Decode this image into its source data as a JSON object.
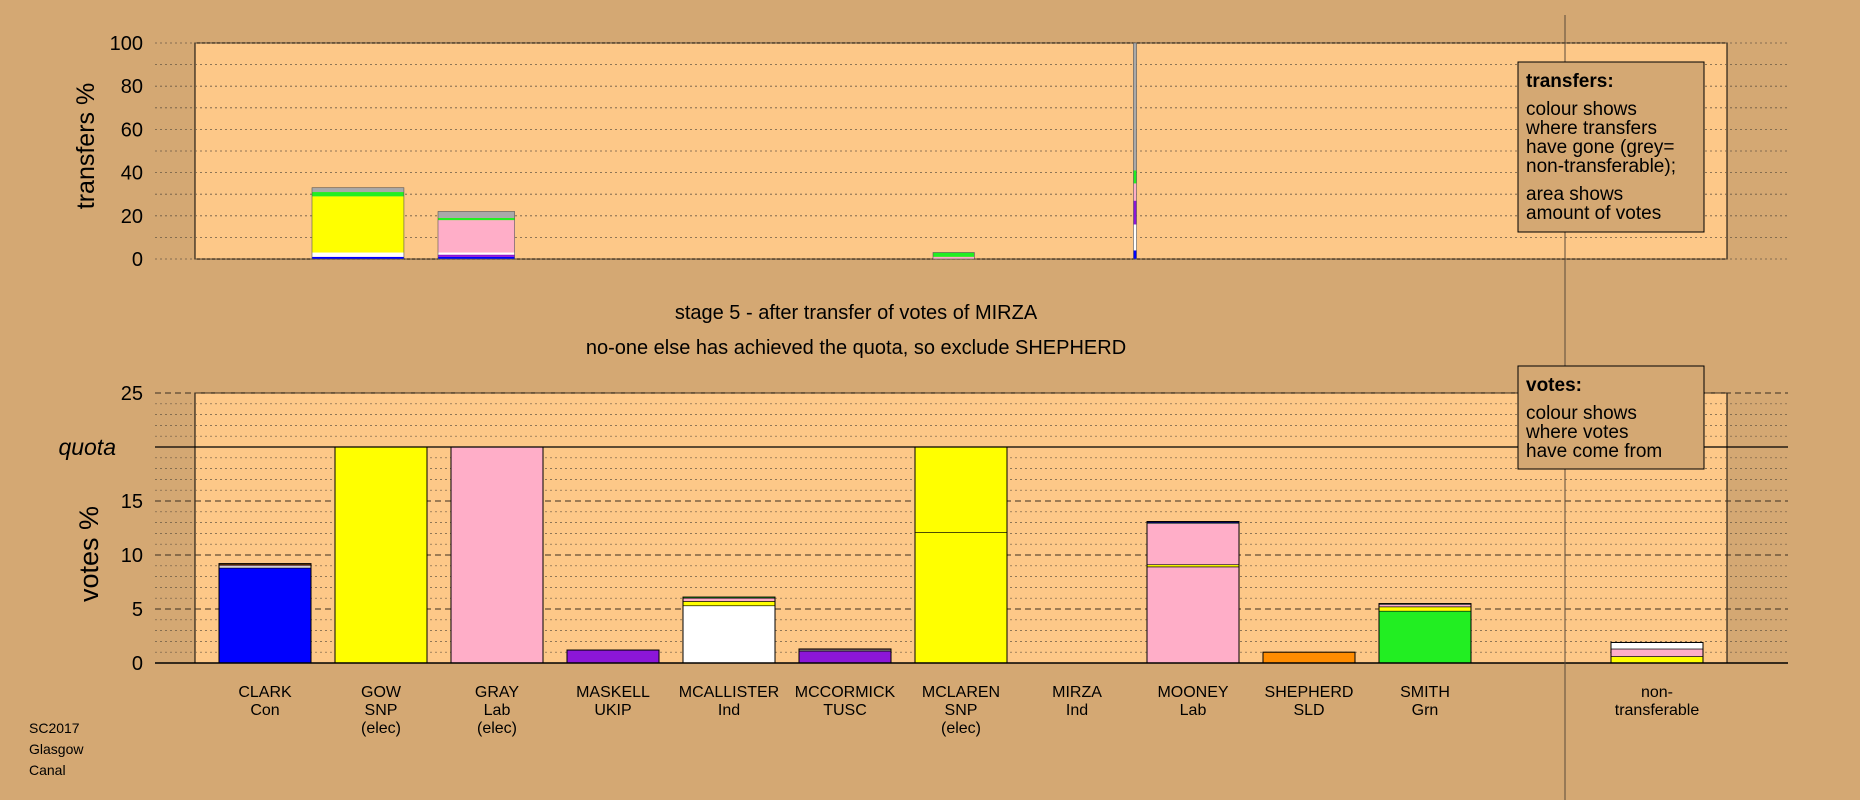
{
  "source_note": [
    "SC2017",
    "Glasgow",
    "Canal"
  ],
  "colors": {
    "background": "#d4a873",
    "panel": "#fdc888",
    "legend_box": "#d4a873",
    "con": "#0000ff",
    "snp": "#ffff00",
    "lab": "#ffaec8",
    "ukip": "#8c16d8",
    "ind": "#ffffff",
    "tusc": "#8c16d8",
    "sld": "#ff8c00",
    "grn": "#22ee22",
    "nontransferable": "#a9a9a9"
  },
  "candidates": [
    {
      "name": "CLARK",
      "party": "Con",
      "elec": ""
    },
    {
      "name": "GOW",
      "party": "SNP",
      "elec": "(elec)"
    },
    {
      "name": "GRAY",
      "party": "Lab",
      "elec": "(elec)"
    },
    {
      "name": "MASKELL",
      "party": "UKIP",
      "elec": ""
    },
    {
      "name": "MCALLISTER",
      "party": "Ind",
      "elec": ""
    },
    {
      "name": "MCCORMICK",
      "party": "TUSC",
      "elec": ""
    },
    {
      "name": "MCLAREN",
      "party": "SNP",
      "elec": "(elec)"
    },
    {
      "name": "MIRZA",
      "party": "Ind",
      "elec": ""
    },
    {
      "name": "MOONEY",
      "party": "Lab",
      "elec": ""
    },
    {
      "name": "SHEPHERD",
      "party": "SLD",
      "elec": ""
    },
    {
      "name": "SMITH",
      "party": "Grn",
      "elec": ""
    }
  ],
  "nontransferable_label": [
    "non-",
    "transferable"
  ],
  "stage_title": "stage 5 - after transfer of votes of MIRZA",
  "stage_subtitle": "no-one else has achieved the quota, so exclude SHEPHERD",
  "legend_transfers": {
    "title": "transfers:",
    "lines": [
      "colour shows",
      "where transfers",
      "have gone (grey=",
      "non-transferable);"
    ],
    "lines2": [
      "area shows",
      "amount of votes"
    ]
  },
  "legend_votes": {
    "title": "votes:",
    "lines": [
      "colour shows",
      "where votes",
      "have come from"
    ]
  },
  "chart_data": [
    {
      "type": "bar",
      "name": "transfers",
      "ylabel": "transfers %",
      "ylim": [
        0,
        100
      ],
      "yticks": [
        0,
        20,
        40,
        60,
        80,
        100
      ],
      "grid": true,
      "note": "stacked transfer shares; column widths show amount of votes",
      "columns": [
        {
          "candidate": "GOW",
          "width_pct": 6.0,
          "segments": [
            {
              "party": "con",
              "value": 1
            },
            {
              "party": "ind",
              "value": 2
            },
            {
              "party": "snp",
              "value": 26
            },
            {
              "party": "grn",
              "value": 2
            },
            {
              "party": "nontransferable",
              "value": 2
            }
          ]
        },
        {
          "candidate": "GRAY",
          "width_pct": 5.0,
          "segments": [
            {
              "party": "con",
              "value": 1
            },
            {
              "party": "ukip",
              "value": 1
            },
            {
              "party": "ind",
              "value": 1
            },
            {
              "party": "lab",
              "value": 15
            },
            {
              "party": "grn",
              "value": 1
            },
            {
              "party": "nontransferable",
              "value": 3
            }
          ]
        },
        {
          "candidate": "MCLAREN",
          "width_pct": 2.7,
          "segments": [
            {
              "party": "lab",
              "value": 1
            },
            {
              "party": "grn",
              "value": 2
            }
          ]
        },
        {
          "candidate": "MIRZA",
          "width_pct": 0.2,
          "segments": [
            {
              "party": "con",
              "value": 4
            },
            {
              "party": "ind",
              "value": 12
            },
            {
              "party": "ukip",
              "value": 11
            },
            {
              "party": "lab",
              "value": 8
            },
            {
              "party": "grn",
              "value": 6
            },
            {
              "party": "nontransferable",
              "value": 59
            }
          ]
        }
      ]
    },
    {
      "type": "bar",
      "name": "votes",
      "ylabel": "votes %",
      "ylim": [
        0,
        25
      ],
      "yticks": [
        0,
        5,
        10,
        15,
        20,
        25
      ],
      "quota": 20,
      "quota_label": "quota",
      "grid": true,
      "categories": [
        "CLARK",
        "GOW",
        "GRAY",
        "MASKELL",
        "MCALLISTER",
        "MCCORMICK",
        "MCLAREN",
        "MIRZA",
        "MOONEY",
        "SHEPHERD",
        "SMITH",
        "non-transferable"
      ],
      "stacks": [
        [
          {
            "party": "con",
            "value": 8.8
          },
          {
            "party": "ind",
            "value": 0.2
          },
          {
            "party": "lab",
            "value": 0.1
          },
          {
            "party": "sld",
            "value": 0.1
          }
        ],
        [
          {
            "party": "snp",
            "value": 20
          }
        ],
        [
          {
            "party": "lab",
            "value": 20
          }
        ],
        [
          {
            "party": "ukip",
            "value": 1.2
          }
        ],
        [
          {
            "party": "ind",
            "value": 5.3
          },
          {
            "party": "snp",
            "value": 0.4
          },
          {
            "party": "lab",
            "value": 0.3
          },
          {
            "party": "grn",
            "value": 0.1
          }
        ],
        [
          {
            "party": "tusc",
            "value": 1.1
          },
          {
            "party": "ind",
            "value": 0.1
          },
          {
            "party": "lab",
            "value": 0.1
          }
        ],
        [
          {
            "party": "snp",
            "value": 12.1
          },
          {
            "party": "snp",
            "value": 7.9
          }
        ],
        [],
        [
          {
            "party": "lab",
            "value": 8.9
          },
          {
            "party": "snp",
            "value": 0.2
          },
          {
            "party": "lab",
            "value": 3.8
          },
          {
            "party": "ind",
            "value": 0.1
          },
          {
            "party": "con",
            "value": 0.1
          }
        ],
        [
          {
            "party": "sld",
            "value": 1.0
          }
        ],
        [
          {
            "party": "grn",
            "value": 4.8
          },
          {
            "party": "snp",
            "value": 0.4
          },
          {
            "party": "lab",
            "value": 0.2
          },
          {
            "party": "ind",
            "value": 0.1
          }
        ],
        [
          {
            "party": "snp",
            "value": 0.6
          },
          {
            "party": "lab",
            "value": 0.7
          },
          {
            "party": "ind",
            "value": 0.6
          }
        ]
      ]
    }
  ]
}
